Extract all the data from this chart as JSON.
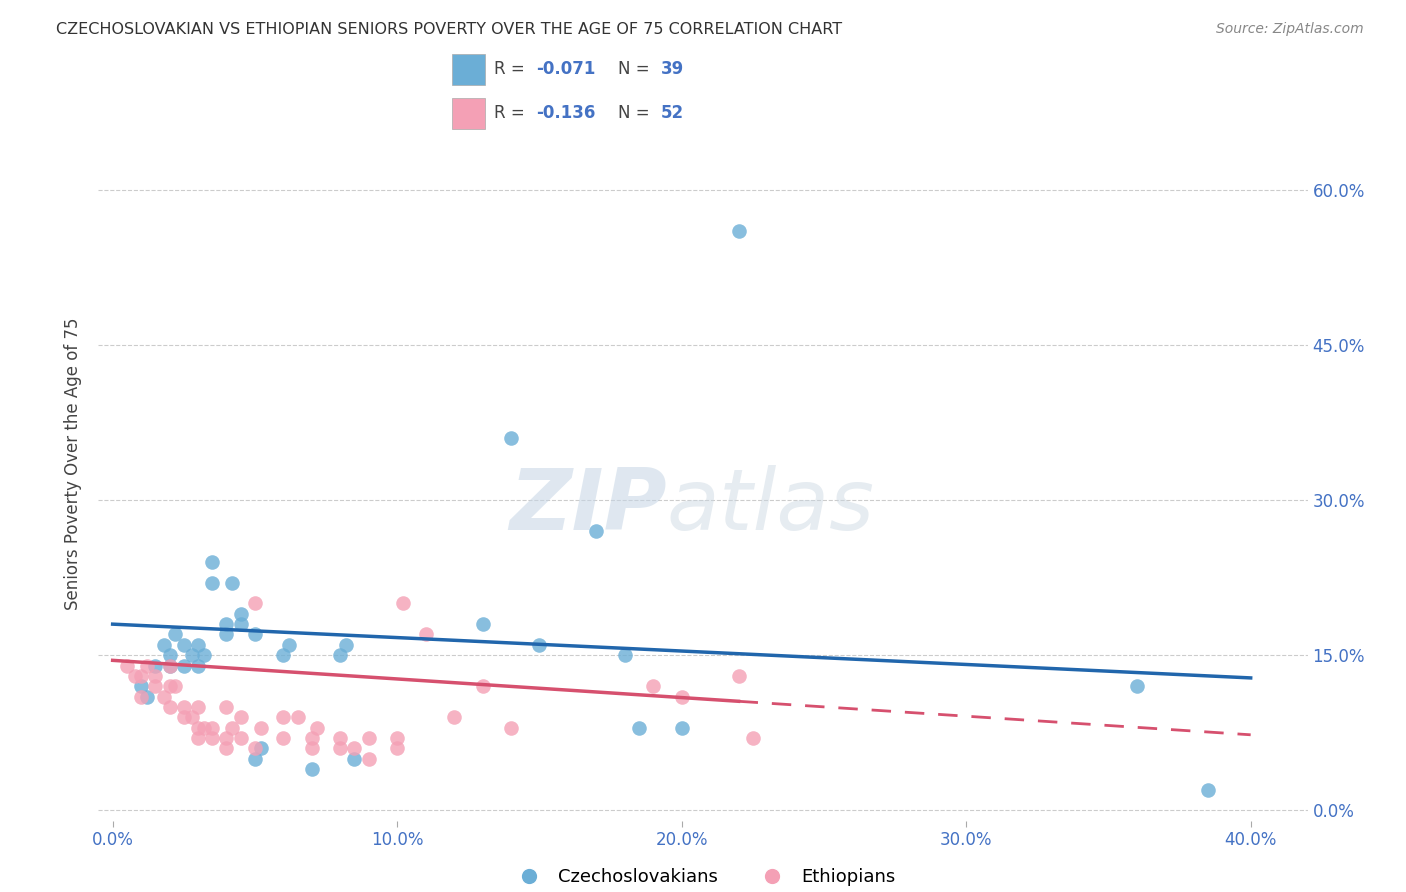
{
  "title": "CZECHOSLOVAKIAN VS ETHIOPIAN SENIORS POVERTY OVER THE AGE OF 75 CORRELATION CHART",
  "source": "Source: ZipAtlas.com",
  "ylabel": "Seniors Poverty Over the Age of 75",
  "xlabel_ticks": [
    "0.0%",
    "10.0%",
    "20.0%",
    "30.0%",
    "40.0%"
  ],
  "xlabel_vals": [
    0.0,
    10.0,
    20.0,
    30.0,
    40.0
  ],
  "ylabel_ticks": [
    "0.0%",
    "15.0%",
    "30.0%",
    "45.0%",
    "60.0%"
  ],
  "ylabel_vals": [
    0.0,
    15.0,
    30.0,
    45.0,
    60.0
  ],
  "xlim": [
    -0.5,
    42.0
  ],
  "ylim": [
    -1.0,
    68.0
  ],
  "legend_r_czech": "-0.071",
  "legend_n_czech": "39",
  "legend_r_ethiop": "-0.136",
  "legend_n_ethiop": "52",
  "blue_color": "#6baed6",
  "pink_color": "#f4a0b5",
  "line_blue": "#2166ac",
  "line_pink": "#d6506e",
  "watermark_zip": "ZIP",
  "watermark_atlas": "atlas",
  "background_color": "#ffffff",
  "grid_color": "#cccccc",
  "czech_x": [
    1.0,
    1.2,
    1.5,
    1.8,
    2.0,
    2.0,
    2.2,
    2.5,
    2.5,
    2.8,
    3.0,
    3.0,
    3.2,
    3.5,
    3.5,
    4.0,
    4.0,
    4.2,
    4.5,
    4.5,
    5.0,
    5.0,
    5.2,
    6.0,
    6.2,
    7.0,
    8.0,
    8.2,
    8.5,
    13.0,
    14.0,
    15.0,
    17.0,
    18.0,
    18.5,
    20.0,
    22.0,
    36.0,
    38.5
  ],
  "czech_y": [
    12.0,
    11.0,
    14.0,
    16.0,
    14.0,
    15.0,
    17.0,
    14.0,
    16.0,
    15.0,
    14.0,
    16.0,
    15.0,
    22.0,
    24.0,
    17.0,
    18.0,
    22.0,
    18.0,
    19.0,
    17.0,
    5.0,
    6.0,
    15.0,
    16.0,
    4.0,
    15.0,
    16.0,
    5.0,
    18.0,
    36.0,
    16.0,
    27.0,
    15.0,
    8.0,
    8.0,
    56.0,
    12.0,
    2.0
  ],
  "ethiop_x": [
    0.5,
    0.8,
    1.0,
    1.0,
    1.2,
    1.5,
    1.5,
    1.8,
    2.0,
    2.0,
    2.0,
    2.2,
    2.5,
    2.5,
    2.8,
    3.0,
    3.0,
    3.0,
    3.2,
    3.5,
    3.5,
    4.0,
    4.0,
    4.0,
    4.2,
    4.5,
    4.5,
    5.0,
    5.0,
    5.2,
    6.0,
    6.0,
    6.5,
    7.0,
    7.0,
    7.2,
    8.0,
    8.0,
    8.5,
    9.0,
    9.0,
    10.0,
    10.0,
    10.2,
    11.0,
    12.0,
    13.0,
    14.0,
    19.0,
    20.0,
    22.0,
    22.5
  ],
  "ethiop_y": [
    14.0,
    13.0,
    11.0,
    13.0,
    14.0,
    12.0,
    13.0,
    11.0,
    10.0,
    12.0,
    14.0,
    12.0,
    9.0,
    10.0,
    9.0,
    7.0,
    8.0,
    10.0,
    8.0,
    7.0,
    8.0,
    6.0,
    7.0,
    10.0,
    8.0,
    7.0,
    9.0,
    6.0,
    20.0,
    8.0,
    7.0,
    9.0,
    9.0,
    6.0,
    7.0,
    8.0,
    6.0,
    7.0,
    6.0,
    5.0,
    7.0,
    6.0,
    7.0,
    20.0,
    17.0,
    9.0,
    12.0,
    8.0,
    12.0,
    11.0,
    13.0,
    7.0
  ]
}
